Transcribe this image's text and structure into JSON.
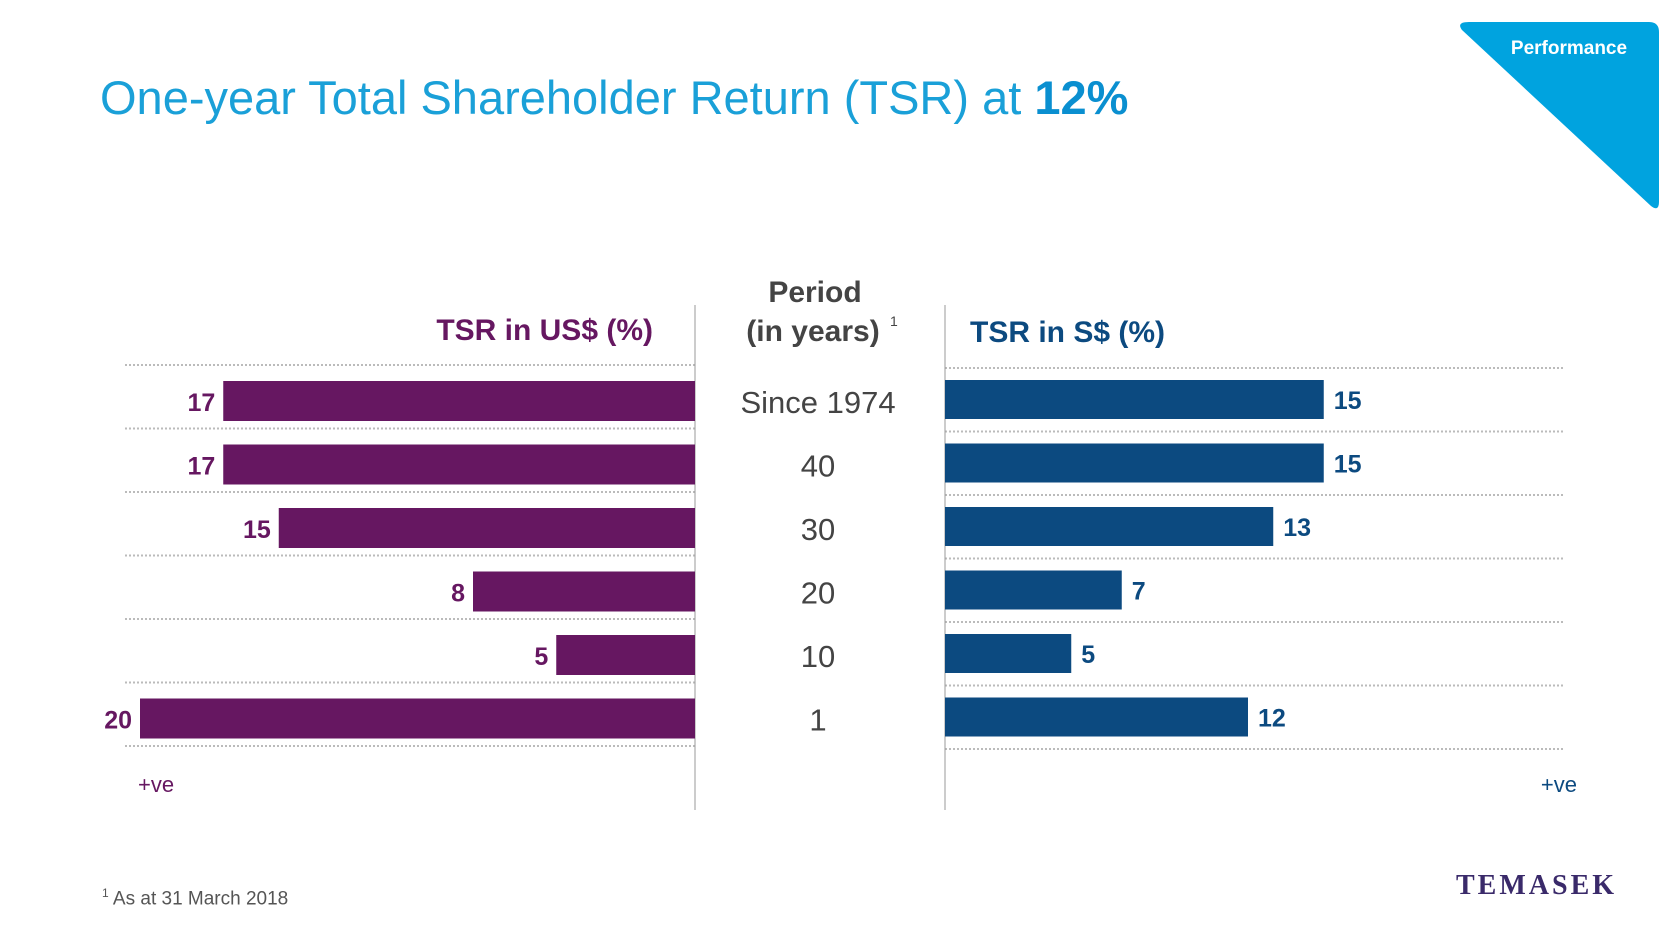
{
  "header": {
    "title_prefix": "One-year Total Shareholder Return (TSR) at ",
    "title_value": "12%"
  },
  "badge": {
    "label": "Performance",
    "color": "#00a3df"
  },
  "footnote": {
    "marker": "1",
    "text": "As at 31 March 2018"
  },
  "logo": {
    "text": "TEMASEK"
  },
  "colors": {
    "usd": "#661761",
    "sgd": "#0c4a80",
    "center_text": "#444444",
    "grid": "#bbbbbb"
  },
  "chart_data": {
    "type": "bar",
    "categories": [
      "Since 1974",
      "40",
      "30",
      "20",
      "10",
      "1"
    ],
    "center_header": {
      "line1": "Period",
      "line2": "(in years)",
      "marker": "1"
    },
    "series": [
      {
        "name": "TSR in US$ (%)",
        "values": [
          17,
          17,
          15,
          8,
          5,
          20
        ],
        "direction_label": "+ve"
      },
      {
        "name": "TSR in S$ (%)",
        "values": [
          15,
          15,
          13,
          7,
          5,
          12
        ],
        "direction_label": "+ve"
      }
    ],
    "xlim": [
      0,
      20
    ],
    "grid": true
  }
}
